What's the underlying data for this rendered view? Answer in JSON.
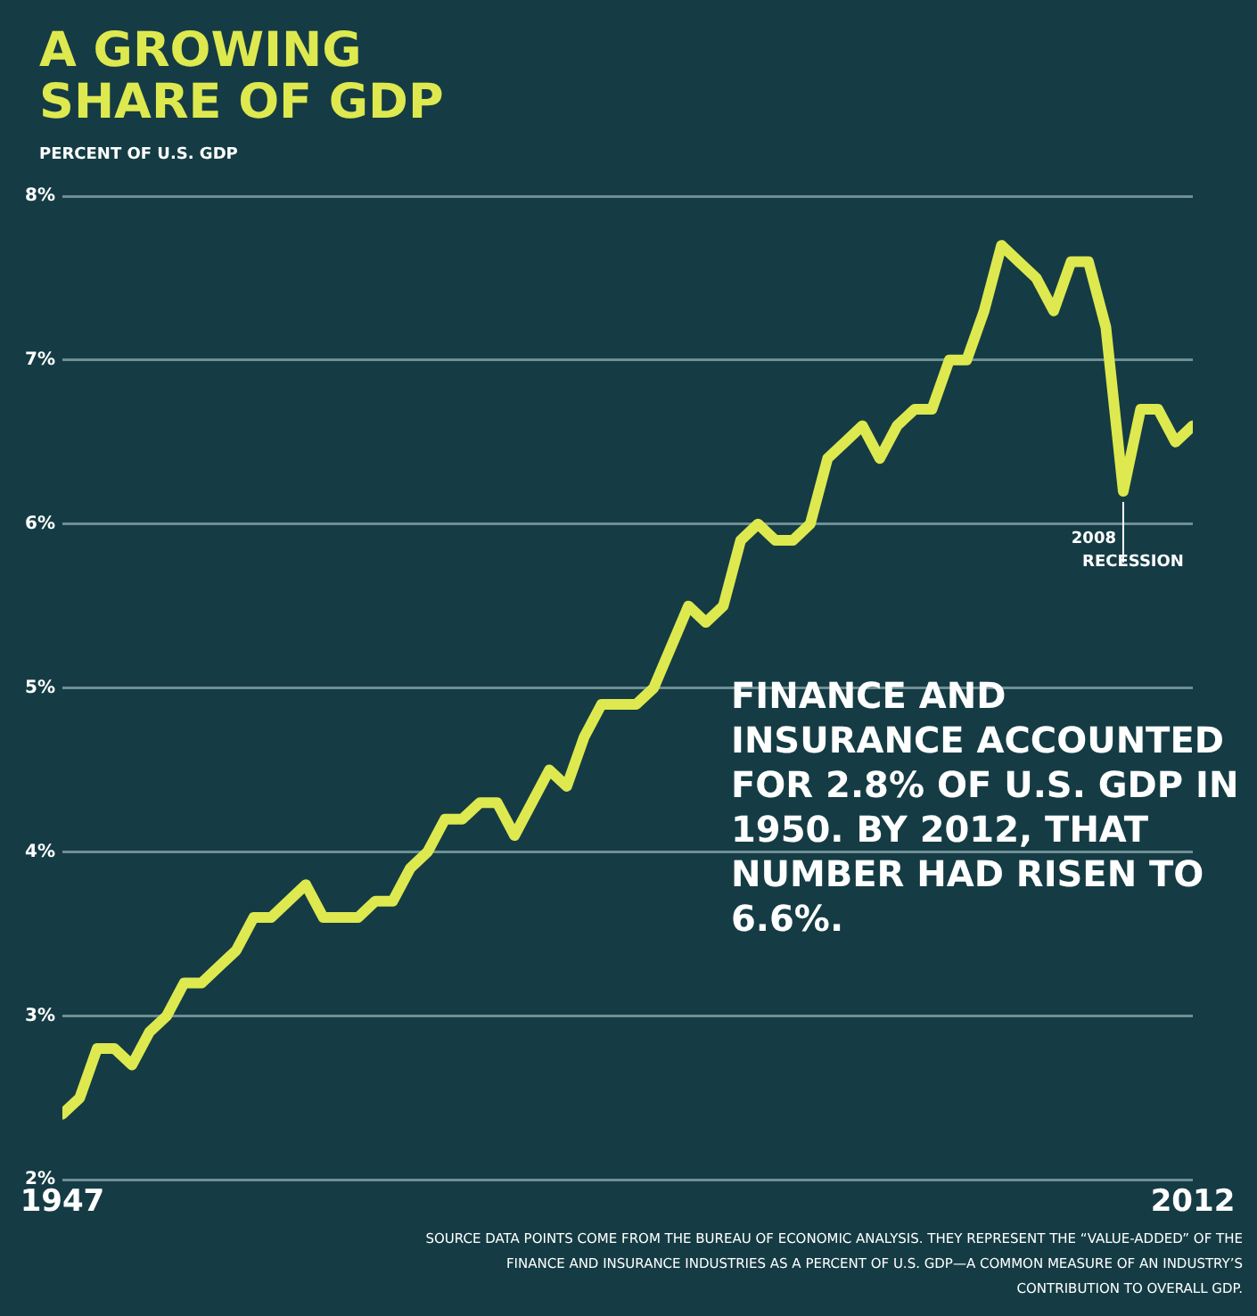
{
  "chart_data": {
    "type": "line",
    "title": "A GROWING SHARE OF GDP",
    "ylabel": "PERCENT OF U.S. GDP",
    "x": [
      1947,
      1948,
      1949,
      1950,
      1951,
      1952,
      1953,
      1954,
      1955,
      1956,
      1957,
      1958,
      1959,
      1960,
      1961,
      1962,
      1963,
      1964,
      1965,
      1966,
      1967,
      1968,
      1969,
      1970,
      1971,
      1972,
      1973,
      1974,
      1975,
      1976,
      1977,
      1978,
      1979,
      1980,
      1981,
      1982,
      1983,
      1984,
      1985,
      1986,
      1987,
      1988,
      1989,
      1990,
      1991,
      1992,
      1993,
      1994,
      1995,
      1996,
      1997,
      1998,
      1999,
      2000,
      2001,
      2002,
      2003,
      2004,
      2005,
      2006,
      2007,
      2008,
      2009,
      2010,
      2011,
      2012
    ],
    "series": [
      {
        "color": "#dde94f",
        "values": [
          2.4,
          2.5,
          2.8,
          2.8,
          2.7,
          2.9,
          3.0,
          3.2,
          3.2,
          3.3,
          3.4,
          3.6,
          3.6,
          3.7,
          3.8,
          3.6,
          3.6,
          3.6,
          3.7,
          3.7,
          3.9,
          4.0,
          4.2,
          4.2,
          4.3,
          4.3,
          4.1,
          4.3,
          4.5,
          4.4,
          4.7,
          4.9,
          4.9,
          4.9,
          5.0,
          5.25,
          5.5,
          5.4,
          5.5,
          5.9,
          6.0,
          5.9,
          5.9,
          6.0,
          6.4,
          6.5,
          6.6,
          6.4,
          6.6,
          6.7,
          6.7,
          7.0,
          7.0,
          7.3,
          7.7,
          7.6,
          7.5,
          7.3,
          7.6,
          7.6,
          7.2,
          6.2,
          6.7,
          6.7,
          6.5,
          6.6
        ]
      }
    ],
    "xlim": [
      1947,
      2012
    ],
    "xticks": [
      1947,
      2012
    ],
    "ylim": [
      2,
      8
    ],
    "yticks": [
      {
        "value": 2,
        "label": "2%"
      },
      {
        "value": 3,
        "label": "3%"
      },
      {
        "value": 4,
        "label": "4%"
      },
      {
        "value": 5,
        "label": "5%"
      },
      {
        "value": 6,
        "label": "6%"
      },
      {
        "value": 7,
        "label": "7%"
      },
      {
        "value": 8,
        "label": "8%"
      }
    ],
    "grid": "y",
    "legend": false,
    "marker": "none",
    "line_style": "solid",
    "annotations": [
      {
        "text": "2008 RECESSION",
        "x": 2008,
        "y": 6.2
      },
      "FINANCE AND INSURANCE ACCOUNTED FOR 2.8% OF U.S. GDP IN 1950. BY 2012, THAT NUMBER HAD RISEN TO 6.6%.",
      "SOURCE DATA POINTS COME FROM THE BUREAU OF ECONOMIC ANALYSIS. THEY REPRESENT THE “VALUE-ADDED” OF THE FINANCE AND INSURANCE INDUSTRIES AS A PERCENT OF U.S. GDP—A COMMON MEASURE OF AN INDUSTRY’S CONTRIBUTION TO OVERALL GDP."
    ]
  }
}
